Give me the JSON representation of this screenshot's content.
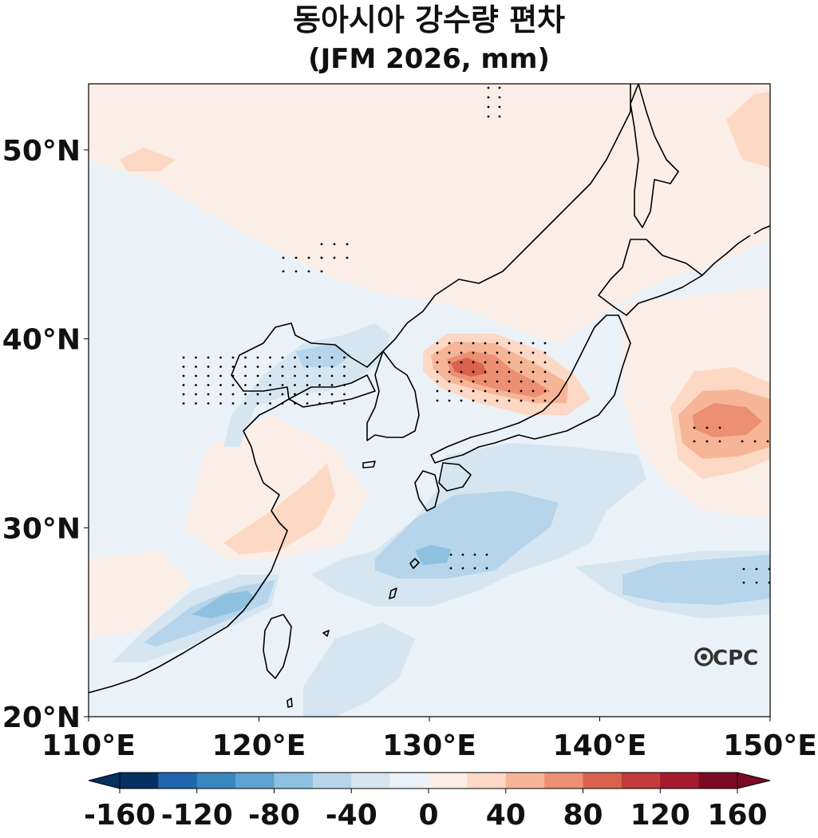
{
  "title": "동아시아 강수량 편차",
  "subtitle": "(JFM 2026, mm)",
  "watermark": "CPC",
  "chart_data": {
    "type": "heatmap",
    "title": "동아시아 강수량 편차",
    "subtitle": "(JFM 2026, mm)",
    "xlim": [
      110,
      150
    ],
    "ylim": [
      20,
      53.5
    ],
    "x_ticks": [
      "110°E",
      "120°E",
      "130°E",
      "140°E",
      "150°E"
    ],
    "y_ticks": [
      "20°N",
      "30°N",
      "40°N",
      "50°N"
    ],
    "x_tick_values": [
      110,
      120,
      130,
      140,
      150
    ],
    "y_tick_values": [
      20,
      30,
      40,
      50
    ],
    "colorbar": {
      "levels": [
        -160,
        -140,
        -120,
        -100,
        -80,
        -60,
        -40,
        -20,
        0,
        20,
        40,
        60,
        80,
        100,
        120,
        140,
        160
      ],
      "labels": [
        "-160",
        "-120",
        "-80",
        "-40",
        "0",
        "40",
        "80",
        "120",
        "160"
      ],
      "label_values": [
        -160,
        -120,
        -80,
        -40,
        0,
        40,
        80,
        120,
        160
      ],
      "colors": [
        "#053061",
        "#2166ac",
        "#3a87c0",
        "#5ea3cf",
        "#8ec0df",
        "#b6d5ea",
        "#d6e6f1",
        "#eaf2f7",
        "#fbeee6",
        "#fdd8c4",
        "#f7b598",
        "#ec8f72",
        "#d9634f",
        "#c23b3d",
        "#a41a2f",
        "#7b0a24"
      ],
      "extend": "both"
    },
    "anomaly_regions": [
      {
        "name": "central-Japan-sea positive",
        "lon": 133,
        "lat": 38,
        "value": 60
      },
      {
        "name": "north-pacific positive",
        "lon": 147.5,
        "lat": 35.5,
        "value": 60
      },
      {
        "name": "yellow-sea negative",
        "lon": 124,
        "lat": 38.5,
        "value": -30
      },
      {
        "name": "south-of-japan negative",
        "lon": 132,
        "lat": 29,
        "value": -50
      },
      {
        "name": "east-china-sea negative",
        "lon": 119,
        "lat": 26,
        "value": -60
      },
      {
        "name": "subtropical pacific negative",
        "lon": 146,
        "lat": 27,
        "value": -40
      },
      {
        "name": "east-china positive",
        "lon": 123,
        "lat": 31,
        "value": 20
      }
    ]
  }
}
